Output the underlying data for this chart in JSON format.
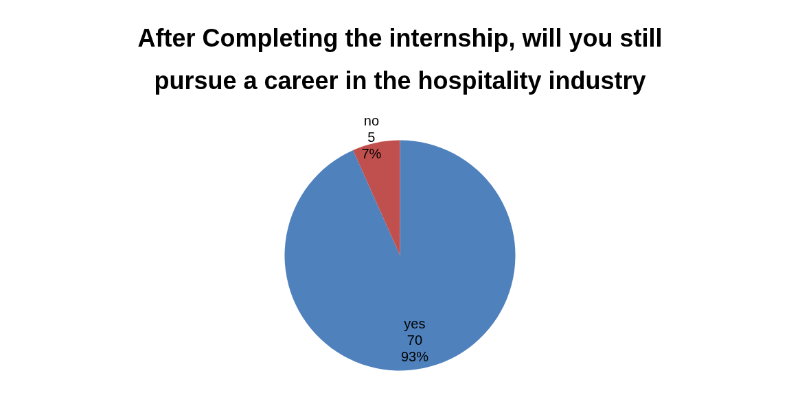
{
  "chart_data": {
    "type": "pie",
    "title": "After Completing the internship, will you still pursue a career in the hospitality industry",
    "categories": [
      "yes",
      "no"
    ],
    "values": [
      70,
      5
    ],
    "colors": [
      "#4f81bd",
      "#c0504d"
    ],
    "value_labels": [
      "70\n93%",
      "5\n7%"
    ],
    "legend": false
  }
}
